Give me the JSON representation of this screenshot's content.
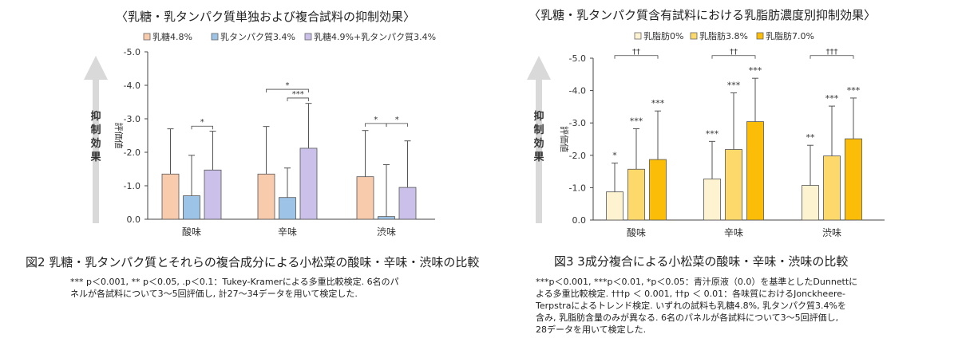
{
  "chart_data": [
    {
      "type": "bar",
      "title": "〈乳糖・乳タンパク質単独および複合試料の抑制効果〉",
      "ylabel": "評価値",
      "arrow_label": "抑制効果",
      "categories": [
        "酸味",
        "辛味",
        "渋味"
      ],
      "ylim": [
        0,
        -5.0
      ],
      "yticks": [
        "0.0",
        "-1.0",
        "-2.0",
        "-3.0",
        "-4.0",
        "-5.0"
      ],
      "legend_position": "top",
      "grid": false,
      "series": [
        {
          "name": "乳糖4.8%",
          "color": "#f8cbad",
          "values": [
            -1.35,
            -1.35,
            -1.27
          ],
          "error_top": [
            -2.7,
            -2.77,
            -2.65
          ]
        },
        {
          "name": "乳タンパク質3.4%",
          "color": "#9dc3e6",
          "values": [
            -0.7,
            -0.65,
            -0.08
          ],
          "error_top": [
            -1.91,
            -1.53,
            -1.63
          ]
        },
        {
          "name": "乳糖4.9%+乳タンパク質3.4%",
          "color": "#cbc0ea",
          "values": [
            -1.47,
            -2.12,
            -0.95
          ],
          "error_top": [
            -2.63,
            -3.46,
            -2.34
          ]
        }
      ],
      "brackets": [
        {
          "category": 0,
          "from": 1,
          "to": 2,
          "label": "*",
          "level": -2.78
        },
        {
          "category": 1,
          "from": 0,
          "to": 2,
          "label": "*",
          "level": -3.88
        },
        {
          "category": 1,
          "from": 1,
          "to": 2,
          "label": "***",
          "level": -3.62
        },
        {
          "category": 2,
          "from": 0,
          "to": 1,
          "label": "*",
          "level": -2.86
        },
        {
          "category": 2,
          "from": 1,
          "to": 2,
          "label": "*",
          "level": -2.86
        }
      ]
    },
    {
      "type": "bar",
      "title": "〈乳糖・乳タンパク質含有試料における乳脂肪濃度別抑制効果〉",
      "ylabel": "評価値",
      "arrow_label": "抑制効果",
      "categories": [
        "酸味",
        "辛味",
        "渋味"
      ],
      "ylim": [
        0,
        -5.0
      ],
      "yticks": [
        "0.0",
        "-1.0",
        "-2.0",
        "-3.0",
        "-4.0",
        "-5.0"
      ],
      "legend_position": "top",
      "grid": false,
      "series": [
        {
          "name": "乳脂肪0%",
          "color": "#fdf3d0",
          "values": [
            -0.87,
            -1.27,
            -1.07
          ],
          "error_top": [
            -1.76,
            -2.43,
            -2.31
          ],
          "labels": [
            "*",
            "***",
            "**"
          ]
        },
        {
          "name": "乳脂肪3.8%",
          "color": "#fdd86a",
          "values": [
            -1.57,
            -2.18,
            -1.98
          ],
          "error_top": [
            -2.82,
            -3.93,
            -3.52
          ],
          "labels": [
            "***",
            "***",
            "***"
          ]
        },
        {
          "name": "乳脂肪7.0%",
          "color": "#fbbd08",
          "values": [
            -1.87,
            -3.04,
            -2.51
          ],
          "error_top": [
            -3.37,
            -4.38,
            -3.77
          ],
          "labels": [
            "***",
            "***",
            "***"
          ]
        }
      ],
      "brackets": [
        {
          "category": 0,
          "from": 0,
          "to": 2,
          "label": "††",
          "level": -5.08
        },
        {
          "category": 1,
          "from": 0,
          "to": 2,
          "label": "††",
          "level": -5.08
        },
        {
          "category": 2,
          "from": 0,
          "to": 2,
          "label": "†††",
          "level": -5.08
        }
      ]
    }
  ],
  "figures": [
    {
      "caption": "図2  乳糖・乳タンパク質とそれらの複合成分による小松菜の酸味・辛味・渋味の比較",
      "notes": [
        "*** p＜0.001, ** p＜0.05, .p＜0.1：Tukey-Kramerによる多重比較検定. 6名のパ",
        "ネルが各試料について3～5回評価し, 計27～34データを用いて検定した."
      ]
    },
    {
      "caption": "図3  3成分複合による小松菜の酸味・辛味・渋味の比較",
      "notes": [
        "***p＜0.001, ***p＜0.01, *p＜0.05：青汁原液（0.0）を基準としたDunnettに",
        "よる多重比較検定. †††p ＜ 0.001, ††p ＜ 0.01：各味質におけるJonckheere-",
        "Terpstraによるトレンド検定. いずれの試料も乳糖4.8%, 乳タンパク質3.4%を",
        "含み, 乳脂肪含量のみが異なる. 6名のパネルが各試料について3～5回評価し,",
        "28データを用いて検定した."
      ]
    }
  ]
}
